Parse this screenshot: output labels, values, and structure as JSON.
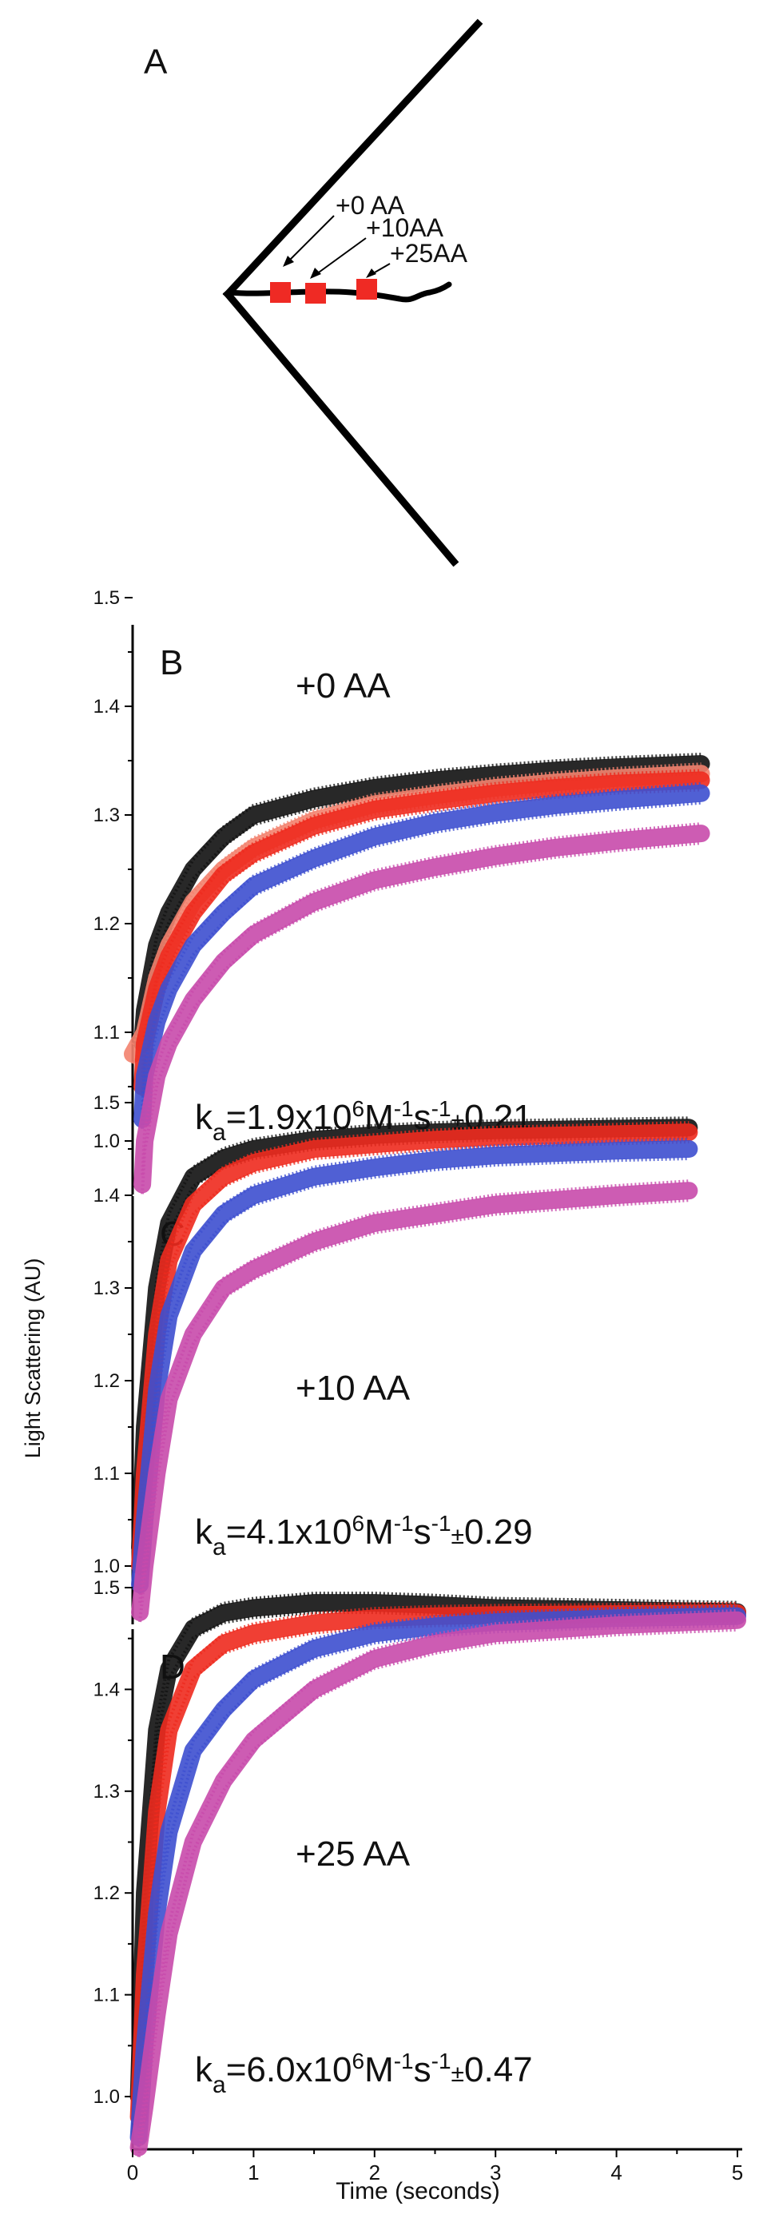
{
  "panel_a": {
    "letter": "A",
    "labels": [
      "+0 AA",
      "+10AA",
      "+25AA"
    ]
  },
  "shared": {
    "ylabel": "Light Scattering (AU)",
    "xlabel": "Time (seconds)",
    "x_ticks": [
      "0",
      "1",
      "2",
      "3",
      "4",
      "5"
    ]
  },
  "colors": {
    "black": "#111111",
    "red": "#ee2a1e",
    "salmon": "#f3826e",
    "blue": "#3d4fcf",
    "magenta": "#c84aab",
    "marker": "#ef2a24"
  },
  "chart_data": [
    {
      "type": "line",
      "panel": "B",
      "annotation": "+0 AA",
      "rate": {
        "main": "k",
        "sub": "a",
        "text": "=1.9x10",
        "exp": "6",
        "unit1": "M",
        "sup1": "-1",
        "unit2": "s",
        "sup2": "-1",
        "pm": "±",
        "err": "0.21"
      },
      "xlim": [
        0,
        5
      ],
      "ylim": [
        0.95,
        1.53
      ],
      "y_ticks": [
        "1.0",
        "1.1",
        "1.2",
        "1.3",
        "1.4",
        "1.5"
      ],
      "y_tick_values": [
        1.0,
        1.1,
        1.2,
        1.3,
        1.4,
        1.5
      ],
      "series": [
        {
          "color": "black",
          "x": [
            0.08,
            0.1,
            0.15,
            0.2,
            0.3,
            0.5,
            0.75,
            1.0,
            1.5,
            2.0,
            2.5,
            3.0,
            3.5,
            4.0,
            4.7
          ],
          "y": [
            1.09,
            1.12,
            1.15,
            1.18,
            1.21,
            1.25,
            1.28,
            1.3,
            1.315,
            1.325,
            1.332,
            1.337,
            1.341,
            1.344,
            1.347
          ]
        },
        {
          "color": "salmon",
          "x": [
            0.0,
            0.05,
            0.1,
            0.2,
            0.3,
            0.5,
            0.75,
            1.0,
            1.5,
            2.0,
            2.5,
            3.0,
            3.5,
            4.0,
            4.7
          ],
          "y": [
            1.08,
            1.09,
            1.1,
            1.15,
            1.18,
            1.22,
            1.25,
            1.27,
            1.295,
            1.31,
            1.318,
            1.325,
            1.33,
            1.334,
            1.338
          ]
        },
        {
          "color": "red",
          "x": [
            0.08,
            0.1,
            0.2,
            0.3,
            0.5,
            0.75,
            1.0,
            1.5,
            2.0,
            2.5,
            3.0,
            3.5,
            4.0,
            4.7
          ],
          "y": [
            1.05,
            1.09,
            1.14,
            1.17,
            1.21,
            1.245,
            1.265,
            1.29,
            1.305,
            1.313,
            1.32,
            1.325,
            1.329,
            1.332
          ]
        },
        {
          "color": "blue",
          "x": [
            0.08,
            0.1,
            0.2,
            0.3,
            0.5,
            0.75,
            1.0,
            1.5,
            2.0,
            2.5,
            3.0,
            3.5,
            4.0,
            4.7
          ],
          "y": [
            1.02,
            1.06,
            1.11,
            1.14,
            1.18,
            1.21,
            1.235,
            1.26,
            1.28,
            1.293,
            1.302,
            1.309,
            1.314,
            1.32
          ]
        },
        {
          "color": "magenta",
          "x": [
            0.08,
            0.1,
            0.2,
            0.3,
            0.5,
            0.75,
            1.0,
            1.5,
            2.0,
            2.5,
            3.0,
            3.5,
            4.0,
            4.7
          ],
          "y": [
            0.96,
            1.0,
            1.06,
            1.09,
            1.13,
            1.165,
            1.19,
            1.22,
            1.24,
            1.252,
            1.262,
            1.27,
            1.276,
            1.283
          ]
        }
      ]
    },
    {
      "type": "line",
      "panel": "C",
      "annotation": "+10 AA",
      "rate": {
        "main": "k",
        "sub": "a",
        "text": "=4.1x10",
        "exp": "6",
        "unit1": "M",
        "sup1": "-1",
        "unit2": "s",
        "sup2": "-1",
        "pm": "±",
        "err": "0.29"
      },
      "xlim": [
        0,
        5
      ],
      "ylim": [
        0.95,
        1.53
      ],
      "y_ticks": [
        "1.0",
        "1.1",
        "1.2",
        "1.3",
        "1.4",
        "1.5"
      ],
      "y_tick_values": [
        1.0,
        1.1,
        1.2,
        1.3,
        1.4,
        1.5
      ],
      "series": [
        {
          "color": "black",
          "x": [
            0.06,
            0.1,
            0.2,
            0.3,
            0.5,
            0.75,
            1.0,
            1.5,
            2.0,
            2.5,
            3.0,
            4.0,
            4.6
          ],
          "y": [
            1.02,
            1.15,
            1.3,
            1.37,
            1.42,
            1.44,
            1.45,
            1.46,
            1.465,
            1.468,
            1.47,
            1.472,
            1.473
          ]
        },
        {
          "color": "red",
          "x": [
            0.06,
            0.1,
            0.2,
            0.3,
            0.5,
            0.75,
            1.0,
            1.5,
            2.0,
            2.5,
            3.0,
            4.0,
            4.6
          ],
          "y": [
            1.0,
            1.1,
            1.25,
            1.33,
            1.39,
            1.42,
            1.435,
            1.45,
            1.455,
            1.46,
            1.463,
            1.466,
            1.468
          ]
        },
        {
          "color": "blue",
          "x": [
            0.06,
            0.1,
            0.2,
            0.3,
            0.5,
            0.75,
            1.0,
            1.5,
            2.0,
            2.5,
            3.0,
            4.0,
            4.6
          ],
          "y": [
            0.98,
            1.05,
            1.19,
            1.27,
            1.34,
            1.38,
            1.4,
            1.42,
            1.43,
            1.438,
            1.443,
            1.448,
            1.45
          ]
        },
        {
          "color": "magenta",
          "x": [
            0.06,
            0.1,
            0.2,
            0.3,
            0.5,
            0.75,
            1.0,
            1.5,
            2.0,
            2.5,
            3.0,
            4.0,
            4.6
          ],
          "y": [
            0.95,
            1.0,
            1.1,
            1.18,
            1.25,
            1.3,
            1.32,
            1.35,
            1.37,
            1.38,
            1.39,
            1.4,
            1.405
          ]
        }
      ]
    },
    {
      "type": "line",
      "panel": "D",
      "annotation": "+25 AA",
      "rate": {
        "main": "k",
        "sub": "a",
        "text": "=6.0x10",
        "exp": "6",
        "unit1": "M",
        "sup1": "-1",
        "unit2": "s",
        "sup2": "-1",
        "pm": "±",
        "err": "0.47"
      },
      "xlim": [
        0,
        5
      ],
      "ylim": [
        0.95,
        1.53
      ],
      "y_ticks": [
        "1.0",
        "1.1",
        "1.2",
        "1.3",
        "1.4",
        "1.5"
      ],
      "y_tick_values": [
        1.0,
        1.1,
        1.2,
        1.3,
        1.4,
        1.5
      ],
      "series": [
        {
          "color": "black",
          "x": [
            0.05,
            0.1,
            0.2,
            0.3,
            0.5,
            0.75,
            1.0,
            1.5,
            2.0,
            2.5,
            3.0,
            4.0,
            5.0
          ],
          "y": [
            1.0,
            1.2,
            1.36,
            1.42,
            1.46,
            1.475,
            1.48,
            1.485,
            1.485,
            1.483,
            1.48,
            1.478,
            1.476
          ]
        },
        {
          "color": "red",
          "x": [
            0.05,
            0.1,
            0.2,
            0.3,
            0.5,
            0.75,
            1.0,
            1.5,
            2.0,
            2.5,
            3.0,
            4.0,
            5.0
          ],
          "y": [
            0.98,
            1.12,
            1.28,
            1.36,
            1.42,
            1.445,
            1.455,
            1.465,
            1.47,
            1.472,
            1.473,
            1.474,
            1.475
          ]
        },
        {
          "color": "blue",
          "x": [
            0.05,
            0.1,
            0.2,
            0.3,
            0.5,
            0.75,
            1.0,
            1.5,
            2.0,
            2.5,
            3.0,
            4.0,
            5.0
          ],
          "y": [
            0.96,
            1.05,
            1.18,
            1.26,
            1.34,
            1.38,
            1.41,
            1.44,
            1.455,
            1.462,
            1.466,
            1.47,
            1.472
          ]
        },
        {
          "color": "magenta",
          "x": [
            0.05,
            0.1,
            0.2,
            0.3,
            0.5,
            0.75,
            1.0,
            1.5,
            2.0,
            2.5,
            3.0,
            4.0,
            5.0
          ],
          "y": [
            0.95,
            0.99,
            1.08,
            1.16,
            1.25,
            1.31,
            1.35,
            1.4,
            1.43,
            1.445,
            1.455,
            1.463,
            1.468
          ]
        }
      ]
    }
  ]
}
